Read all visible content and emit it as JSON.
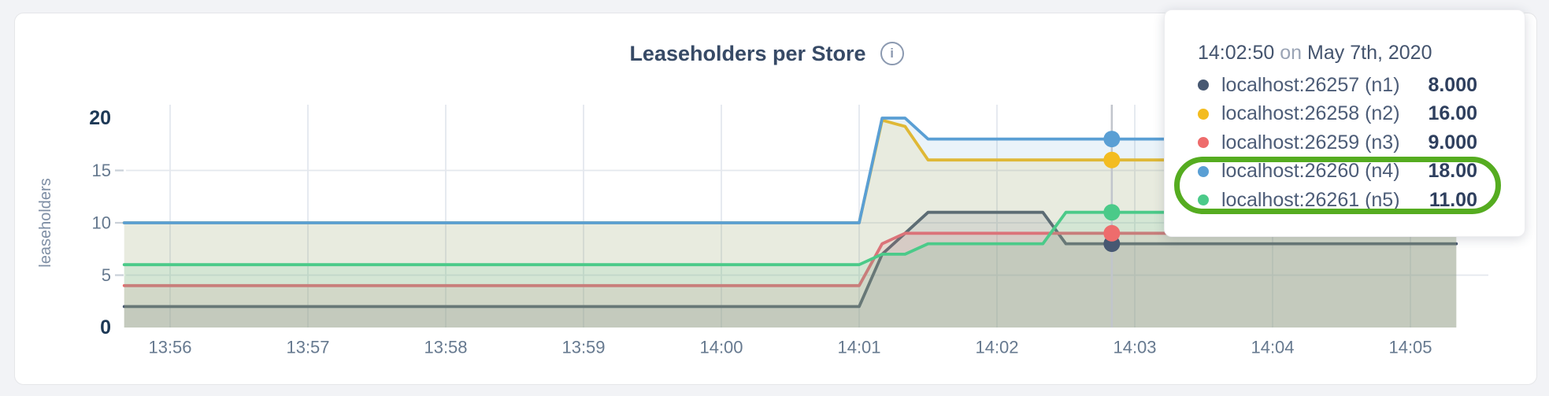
{
  "page": {
    "background_color": "#f2f3f6"
  },
  "chart": {
    "title": "Leaseholders per Store",
    "info_icon_glyph": "i"
  },
  "chart_data": {
    "type": "area",
    "title": "Leaseholders per Store",
    "ylabel": "leaseholders",
    "xlabel": "",
    "ylim": [
      0,
      20
    ],
    "grid": true,
    "x_start": "13:55:40",
    "x_end": "14:05:20",
    "x_ticks": [
      "13:56",
      "13:57",
      "13:58",
      "13:59",
      "14:00",
      "14:01",
      "14:02",
      "14:03",
      "14:04",
      "14:05"
    ],
    "y_ticks": [
      {
        "value": 0,
        "bold": true
      },
      {
        "value": 5,
        "bold": false
      },
      {
        "value": 10,
        "bold": false
      },
      {
        "value": 15,
        "bold": false
      },
      {
        "value": 20,
        "bold": true
      }
    ],
    "y_gridlines": [
      5,
      10,
      15
    ],
    "legend_position": "tooltip-only",
    "series": [
      {
        "name": "localhost:26257 (n1)",
        "color": "#475872",
        "points": [
          [
            "13:55:40",
            2
          ],
          [
            "14:01:00",
            2
          ],
          [
            "14:01:10",
            7
          ],
          [
            "14:01:20",
            9
          ],
          [
            "14:01:30",
            11
          ],
          [
            "14:02:20",
            11
          ],
          [
            "14:02:30",
            8
          ],
          [
            "14:05:20",
            8
          ]
        ]
      },
      {
        "name": "localhost:26258 (n2)",
        "color": "#f3bc20",
        "points": [
          [
            "13:55:40",
            10
          ],
          [
            "14:01:00",
            10
          ],
          [
            "14:01:10",
            19.8
          ],
          [
            "14:01:20",
            19.2
          ],
          [
            "14:01:30",
            16
          ],
          [
            "14:05:20",
            16
          ]
        ]
      },
      {
        "name": "localhost:26259 (n3)",
        "color": "#ee6c6c",
        "points": [
          [
            "13:55:40",
            4
          ],
          [
            "14:01:00",
            4
          ],
          [
            "14:01:10",
            8
          ],
          [
            "14:01:20",
            9
          ],
          [
            "14:05:20",
            9
          ]
        ]
      },
      {
        "name": "localhost:26260 (n4)",
        "color": "#5a9fd4",
        "points": [
          [
            "13:55:40",
            10
          ],
          [
            "14:01:00",
            10
          ],
          [
            "14:01:10",
            20
          ],
          [
            "14:01:20",
            20
          ],
          [
            "14:01:30",
            18
          ],
          [
            "14:05:20",
            18
          ]
        ]
      },
      {
        "name": "localhost:26261 (n5)",
        "color": "#4bca89",
        "points": [
          [
            "13:55:40",
            6
          ],
          [
            "14:01:00",
            6
          ],
          [
            "14:01:10",
            7
          ],
          [
            "14:01:20",
            7
          ],
          [
            "14:01:30",
            8
          ],
          [
            "14:02:20",
            8
          ],
          [
            "14:02:30",
            11
          ],
          [
            "14:05:20",
            11
          ]
        ]
      }
    ]
  },
  "tooltip": {
    "time": "14:02:50",
    "conjunction": "on",
    "date": "May 7th, 2020",
    "rows": [
      {
        "label": "localhost:26257 (n1)",
        "value": "8.000",
        "color": "#475872"
      },
      {
        "label": "localhost:26258 (n2)",
        "value": "16.00",
        "color": "#f3bc20"
      },
      {
        "label": "localhost:26259 (n3)",
        "value": "9.000",
        "color": "#ee6c6c"
      },
      {
        "label": "localhost:26260 (n4)",
        "value": "18.00",
        "color": "#5a9fd4"
      },
      {
        "label": "localhost:26261 (n5)",
        "value": "11.00",
        "color": "#4bca89"
      }
    ],
    "annotation": {
      "highlighted_rows": [
        "localhost:26260 (n4)",
        "localhost:26261 (n5)"
      ],
      "color": "#55ac20"
    }
  }
}
